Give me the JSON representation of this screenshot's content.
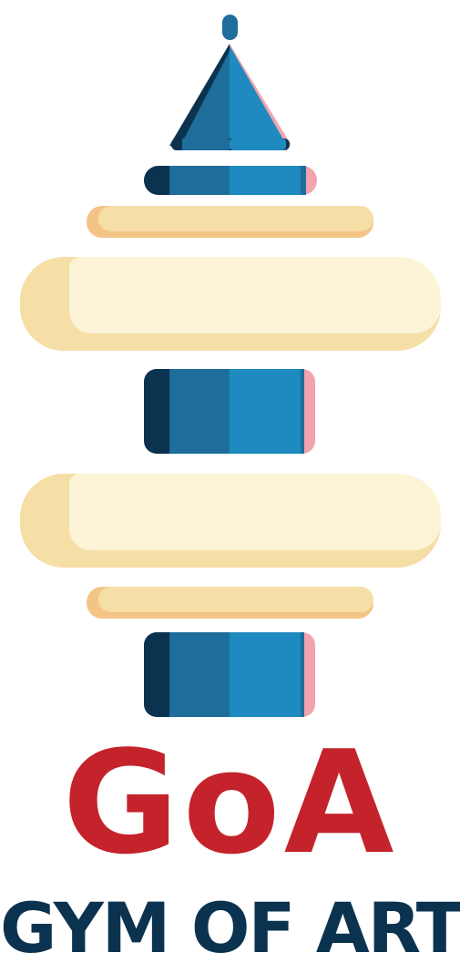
{
  "logo": {
    "brand_mark": "GoA",
    "brand_name": "GYM OF ART",
    "icon_name": "stacked-column-icon"
  },
  "colors": {
    "navy": "#0b3350",
    "blue_mid": "#1e6d9a",
    "blue_light": "#1e8abf",
    "pink": "#f2a3ae",
    "cream": "#fdf4d7",
    "cream_shade": "#f5dfa6",
    "peach": "#f4c487",
    "red": "#c4232b"
  }
}
